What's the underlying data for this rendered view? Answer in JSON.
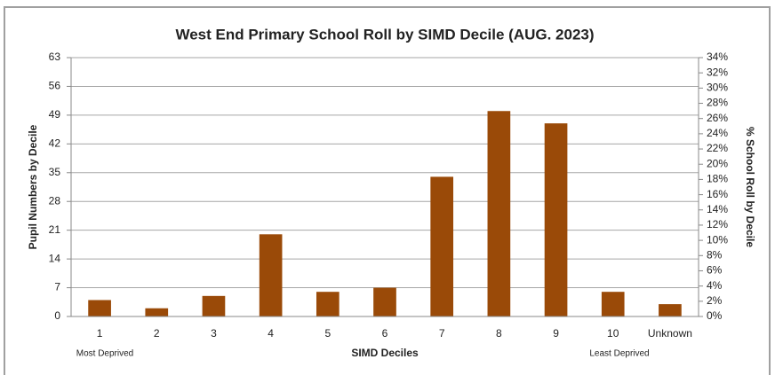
{
  "chart_data": {
    "type": "bar",
    "title": "West End Primary School Roll by SIMD Decile (AUG. 2023)",
    "x_label": "SIMD Deciles",
    "y_label": "Pupil Numbers by Decile",
    "y2_label": "% School Roll by Decile",
    "annotations": [
      "Most Deprived",
      "Least Deprived"
    ],
    "categories": [
      "1",
      "2",
      "3",
      "4",
      "5",
      "6",
      "7",
      "8",
      "9",
      "10",
      "Unknown"
    ],
    "values": [
      4,
      2,
      5,
      20,
      6,
      7,
      34,
      50,
      47,
      6,
      3
    ],
    "color": "#9a4a08",
    "ylim": [
      0,
      63
    ],
    "yticks": [
      0,
      7,
      14,
      21,
      28,
      35,
      42,
      49,
      56,
      63
    ],
    "y2lim": [
      0,
      34
    ],
    "y2ticks": [
      {
        "value": 0,
        "label": "0%"
      },
      {
        "value": 2,
        "label": "2%"
      },
      {
        "value": 4,
        "label": "4%"
      },
      {
        "value": 6,
        "label": "6%"
      },
      {
        "value": 8,
        "label": "8%"
      },
      {
        "value": 10,
        "label": "10%"
      },
      {
        "value": 12,
        "label": "12%"
      },
      {
        "value": 14,
        "label": "14%"
      },
      {
        "value": 16,
        "label": "16%"
      },
      {
        "value": 18,
        "label": "18%"
      },
      {
        "value": 20,
        "label": "20%"
      },
      {
        "value": 22,
        "label": "22%"
      },
      {
        "value": 24,
        "label": "24%"
      },
      {
        "value": 26,
        "label": "26%"
      },
      {
        "value": 28,
        "label": "28%"
      },
      {
        "value": 30,
        "label": "30%"
      },
      {
        "value": 32,
        "label": "32%"
      },
      {
        "value": 34,
        "label": "34%"
      }
    ],
    "grid": true
  }
}
